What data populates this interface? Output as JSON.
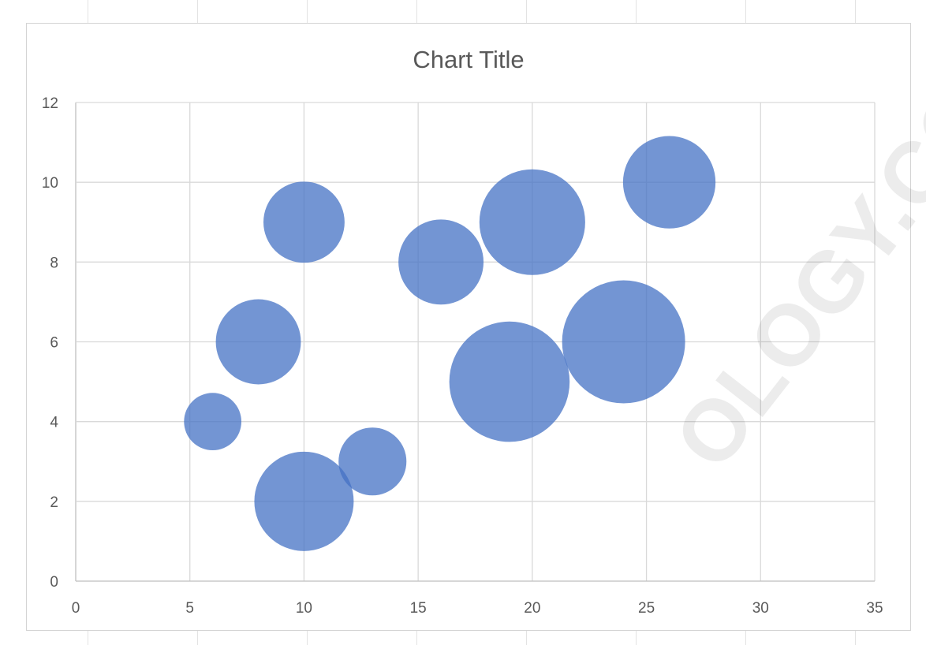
{
  "chart_data": {
    "type": "bubble",
    "title": "Chart Title",
    "xlabel": "",
    "ylabel": "",
    "xlim": [
      0,
      35
    ],
    "ylim": [
      0,
      12
    ],
    "x_ticks": [
      "0",
      "5",
      "10",
      "15",
      "20",
      "25",
      "30",
      "35"
    ],
    "y_ticks": [
      "0",
      "2",
      "4",
      "6",
      "8",
      "10",
      "12"
    ],
    "grid": true,
    "legend": "none",
    "bubble_color": "#4472C4",
    "bubble_opacity": 0.75,
    "series": [
      {
        "points": [
          {
            "x": 6,
            "y": 4,
            "size": 5
          },
          {
            "x": 8,
            "y": 6,
            "size": 11
          },
          {
            "x": 10,
            "y": 9,
            "size": 10
          },
          {
            "x": 10,
            "y": 2,
            "size": 15
          },
          {
            "x": 13,
            "y": 3,
            "size": 7
          },
          {
            "x": 16,
            "y": 8,
            "size": 11
          },
          {
            "x": 19,
            "y": 5,
            "size": 22
          },
          {
            "x": 20,
            "y": 9,
            "size": 17
          },
          {
            "x": 24,
            "y": 6,
            "size": 23
          },
          {
            "x": 26,
            "y": 10,
            "size": 13
          }
        ]
      }
    ]
  },
  "watermark": "OLOGY.COM"
}
